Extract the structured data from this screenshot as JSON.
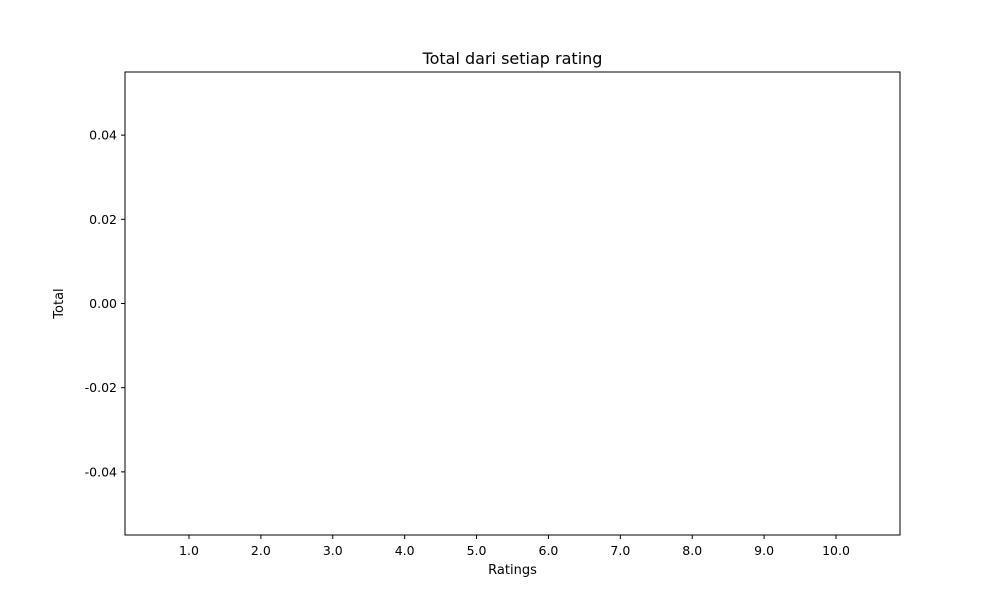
{
  "chart_data": {
    "type": "bar",
    "title": "Total dari setiap rating",
    "xlabel": "Ratings",
    "ylabel": "Total",
    "categories": [
      "1.0",
      "2.0",
      "3.0",
      "4.0",
      "5.0",
      "6.0",
      "7.0",
      "8.0",
      "9.0",
      "10.0"
    ],
    "values": [
      0,
      0,
      0,
      0,
      0,
      0,
      0,
      0,
      0,
      0
    ],
    "ylim": [
      -0.055,
      0.055
    ],
    "yticks": [
      "-0.04",
      "-0.02",
      "0.00",
      "0.02",
      "0.04"
    ],
    "grid": false,
    "legend": "none",
    "colors": {
      "axis": "#000000",
      "background": "#ffffff"
    }
  }
}
